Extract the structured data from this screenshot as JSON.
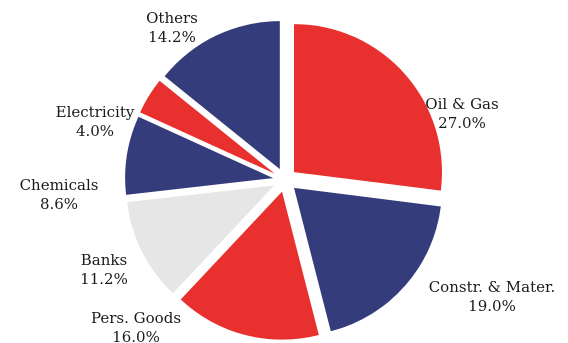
{
  "chart_data": {
    "type": "pie",
    "style": "exploded",
    "title": "",
    "legend": "none",
    "slices": [
      {
        "label": "Oil & Gas",
        "value": 27.0,
        "value_label": "27.0%",
        "color": "#e8312e"
      },
      {
        "label": "Constr. & Mater.",
        "value": 19.0,
        "value_label": "19.0%",
        "color": "#353c7c"
      },
      {
        "label": "Pers. Goods",
        "value": 16.0,
        "value_label": "16.0%",
        "color": "#e8312e"
      },
      {
        "label": "Banks",
        "value": 11.2,
        "value_label": "11.2%",
        "color": "#e6e6e6"
      },
      {
        "label": "Chemicals",
        "value": 8.6,
        "value_label": "8.6%",
        "color": "#353c7c"
      },
      {
        "label": "Electricity",
        "value": 4.0,
        "value_label": "4.0%",
        "color": "#e8312e"
      },
      {
        "label": "Others",
        "value": 14.2,
        "value_label": "14.2%",
        "color": "#353c7c"
      }
    ]
  }
}
